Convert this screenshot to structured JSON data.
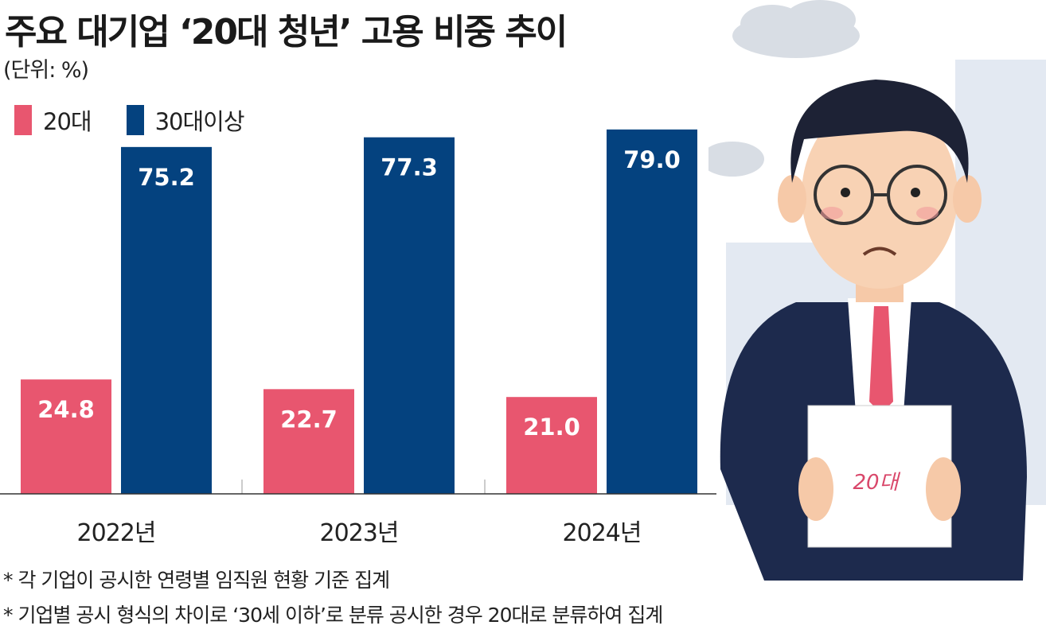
{
  "chart_data": {
    "type": "bar",
    "title": "주요 대기업 ‘20대 청년’ 고용 비중 추이",
    "subtitle": "(단위: %)",
    "categories": [
      "2022년",
      "2023년",
      "2024년"
    ],
    "series": [
      {
        "name": "20대",
        "color": "#e8566f",
        "values": [
          24.8,
          22.7,
          21.0
        ],
        "labels": [
          "24.8",
          "22.7",
          "21.0"
        ]
      },
      {
        "name": "30대이상",
        "color": "#04427f",
        "values": [
          75.2,
          77.3,
          79.0
        ],
        "labels": [
          "75.2",
          "77.3",
          "79.0"
        ]
      }
    ],
    "legend": "top-left",
    "grid": false,
    "ylim": [
      0,
      80
    ]
  },
  "notes": [
    "* 각 기업이 공시한 연령별 임직원 현황 기준 집계",
    "* 기업별 공시 형식의 차이로 ‘30세 이하’로 분류 공시한 경우 20대로 분류하여 집계"
  ],
  "illustration": {
    "paper_text": "20대",
    "colors": {
      "suit": "#1d2a4d",
      "tie": "#e8566f",
      "building": "#e3e9f2",
      "cloud": "#d8dde4"
    }
  }
}
